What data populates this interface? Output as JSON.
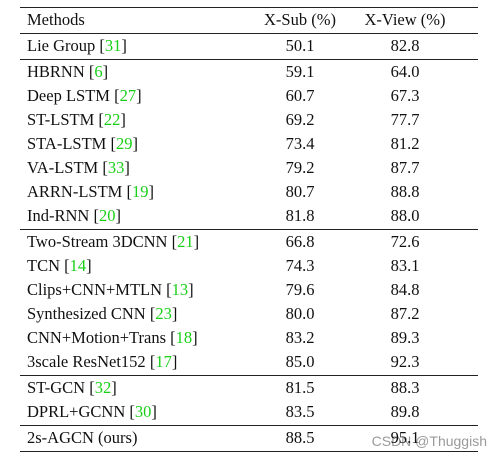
{
  "table": {
    "header": [
      "Methods",
      "X-Sub (%)",
      "X-View (%)"
    ],
    "groups": [
      [
        {
          "name": "Lie Group",
          "ref": "[31]",
          "xsub": "50.1",
          "xview": "82.8"
        }
      ],
      [
        {
          "name": "HBRNN",
          "ref": "[6]",
          "xsub": "59.1",
          "xview": "64.0"
        },
        {
          "name": "Deep LSTM",
          "ref": "[27]",
          "xsub": "60.7",
          "xview": "67.3"
        },
        {
          "name": "ST-LSTM",
          "ref": "[22]",
          "xsub": "69.2",
          "xview": "77.7"
        },
        {
          "name": "STA-LSTM",
          "ref": "[29]",
          "xsub": "73.4",
          "xview": "81.2"
        },
        {
          "name": "VA-LSTM",
          "ref": "[33]",
          "xsub": "79.2",
          "xview": "87.7"
        },
        {
          "name": "ARRN-LSTM",
          "ref": "[19]",
          "xsub": "80.7",
          "xview": "88.8"
        },
        {
          "name": "Ind-RNN",
          "ref": "[20]",
          "xsub": "81.8",
          "xview": "88.0"
        }
      ],
      [
        {
          "name": "Two-Stream 3DCNN",
          "ref": "[21]",
          "xsub": "66.8",
          "xview": "72.6"
        },
        {
          "name": "TCN",
          "ref": "[14]",
          "xsub": "74.3",
          "xview": "83.1"
        },
        {
          "name": "Clips+CNN+MTLN",
          "ref": "[13]",
          "xsub": "79.6",
          "xview": "84.8"
        },
        {
          "name": "Synthesized CNN",
          "ref": "[23]",
          "xsub": "80.0",
          "xview": "87.2"
        },
        {
          "name": "CNN+Motion+Trans",
          "ref": "[18]",
          "xsub": "83.2",
          "xview": "89.3"
        },
        {
          "name": "3scale ResNet152",
          "ref": "[17]",
          "xsub": "85.0",
          "xview": "92.3"
        }
      ],
      [
        {
          "name": "ST-GCN",
          "ref": "[32]",
          "xsub": "81.5",
          "xview": "88.3"
        },
        {
          "name": "DPRL+GCNN",
          "ref": "[30]",
          "xsub": "83.5",
          "xview": "89.8"
        }
      ],
      [
        {
          "name": "2s-AGCN (ours)",
          "xsub": "88.5",
          "xview": "95.1"
        }
      ]
    ]
  },
  "watermark": "CSDN @Thuggish"
}
